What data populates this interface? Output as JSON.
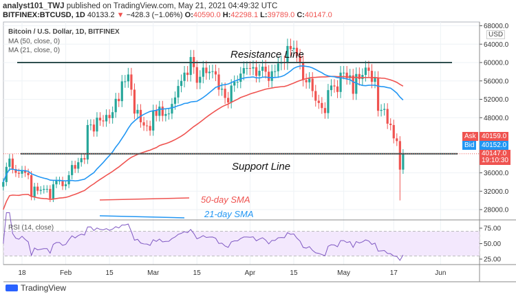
{
  "header": {
    "author": "analyst101_TWJ",
    "published": "published on TradingView.com, May 21, 2021 04:49:32 UTC",
    "symbol": "BITFINEX:BTCUSD, 1D",
    "last": "40133.2",
    "change": "−428.3 (−1.06%)",
    "o_label": "O:",
    "o": "40590.0",
    "h_label": "H:",
    "h": "42298.1",
    "l_label": "L:",
    "l": "39789.0",
    "c_label": "C:",
    "c": "40147.0"
  },
  "legend": {
    "title": "Bitcoin / U.S. Dollar, 1D, BITFINEX",
    "ma50": "MA (50, close, 0)",
    "ma21": "MA (21, close, 0)",
    "rsi": "RSI (14, close)"
  },
  "price_tags": {
    "currency": "USD",
    "ask_label": "Ask",
    "ask": "40159.0",
    "bid_label": "Bid",
    "bid": "40152.0",
    "last": "40147.0",
    "countdown": "19:10:30"
  },
  "annotations": {
    "resistance": "Resistance Line",
    "support": "Support Line",
    "sma50": "50-day SMA",
    "sma21": "21-day SMA"
  },
  "footer": {
    "brand": "TradingView"
  },
  "colors": {
    "up": "#26a69a",
    "down": "#ef5350",
    "sma50": "#ef5350",
    "sma21": "#2196f3",
    "rsi": "#7e57c2",
    "ask": "#ef5350",
    "bid": "#2196f3"
  },
  "chart_data": {
    "type": "candlestick",
    "start_date": "2021-01-12",
    "interval": "1D",
    "close": [
      34000,
      37300,
      39100,
      36800,
      36000,
      35800,
      36600,
      36000,
      35500,
      30800,
      33000,
      32100,
      32300,
      32500,
      32500,
      30400,
      33500,
      34300,
      34300,
      33100,
      33500,
      35500,
      37700,
      36900,
      38300,
      39200,
      38900,
      46400,
      46500,
      45000,
      48000,
      47400,
      47200,
      48600,
      47900,
      49200,
      52100,
      51600,
      55900,
      55900,
      57400,
      54100,
      48900,
      49700,
      47000,
      46300,
      46200,
      45200,
      49600,
      48400,
      50400,
      48400,
      48800,
      48900,
      51000,
      52400,
      54900,
      56000,
      57800,
      57300,
      61200,
      59000,
      55600,
      56900,
      58900,
      57700,
      58000,
      58100,
      57400,
      54100,
      54300,
      52300,
      51300,
      55000,
      55800,
      55800,
      57600,
      58800,
      58800,
      58700,
      59000,
      57100,
      58200,
      59100,
      58000,
      56000,
      58100,
      58100,
      59800,
      60000,
      59900,
      63600,
      62900,
      63200,
      61400,
      60000,
      56200,
      55700,
      56500,
      53800,
      51700,
      51200,
      50100,
      49000,
      54000,
      55000,
      54800,
      53600,
      57800,
      57800,
      56600,
      57200,
      53200,
      57500,
      56400,
      57300,
      58900,
      58200,
      55800,
      56700,
      49500,
      49700,
      49900,
      46700,
      46400,
      43500,
      42900,
      36700,
      40150
    ],
    "y_ticks": [
      "68000.0",
      "64000.0",
      "60000.0",
      "56000.0",
      "52000.0",
      "48000.0",
      "36000.0",
      "32000.0",
      "28000.0"
    ],
    "rsi_ticks": [
      "75.00",
      "50.00",
      "25.00"
    ],
    "x_ticks": [
      "18",
      "Feb",
      "15",
      "Mar",
      "15",
      "Apr",
      "15",
      "May",
      "17",
      "Jun"
    ],
    "x_tick_dates": [
      "2021-01-18",
      "2021-02-01",
      "2021-02-15",
      "2021-03-01",
      "2021-03-15",
      "2021-04-01",
      "2021-04-15",
      "2021-05-01",
      "2021-05-17",
      "2021-06-01"
    ],
    "horizontal_lines": [
      60000,
      40000
    ],
    "ylim": [
      26000,
      68500
    ],
    "rsi_band": [
      30,
      70
    ]
  }
}
